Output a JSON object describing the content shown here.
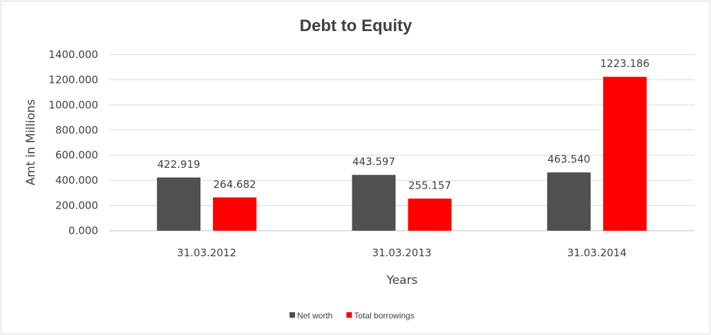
{
  "chart_data": {
    "type": "bar",
    "title": "Debt to Equity",
    "xlabel": "Years",
    "ylabel": "Amt in Millions",
    "categories": [
      "31.03.2012",
      "31.03.2013",
      "31.03.2014"
    ],
    "series": [
      {
        "name": "Net worth",
        "values": [
          422.919,
          443.597,
          463.54
        ],
        "labels": [
          "422.919",
          "443.597",
          "463.540"
        ],
        "color": "#505050"
      },
      {
        "name": "Total borrowings",
        "values": [
          264.682,
          255.157,
          1223.186
        ],
        "labels": [
          "264.682",
          "255.157",
          "1223.186"
        ],
        "color": "#ff0000"
      }
    ],
    "ylim": [
      0,
      1400
    ],
    "yticks": [
      "0.000",
      "200.000",
      "400.000",
      "600.000",
      "800.000",
      "1000.000",
      "1200.000",
      "1400.000"
    ],
    "grid": true,
    "legend_position": "bottom"
  }
}
